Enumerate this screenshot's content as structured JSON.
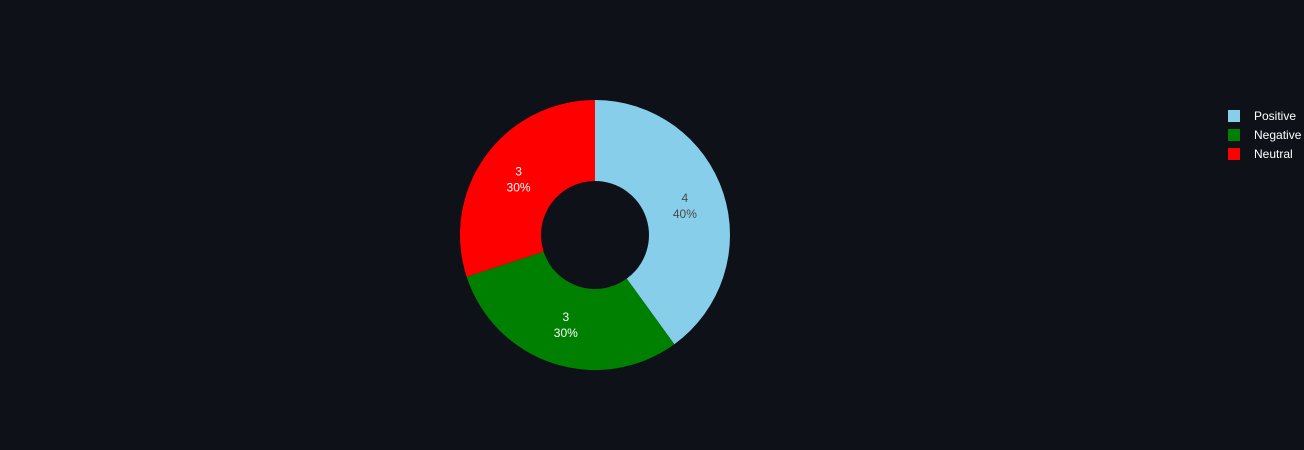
{
  "chart_data": {
    "type": "pie",
    "hole": true,
    "labels": [
      "Positive",
      "Negative",
      "Neutral"
    ],
    "values": [
      4,
      3,
      3
    ],
    "percent_labels": [
      "40%",
      "30%",
      "30%"
    ],
    "value_labels": [
      "4",
      "3",
      "3"
    ],
    "colors": [
      "#87ceeb",
      "#008000",
      "#ff0000"
    ],
    "label_colors": [
      "#4a4a4a",
      "#ffffff",
      "#ffffff"
    ],
    "legend_position": "top-right",
    "title": ""
  },
  "colors": {
    "background": "#0e1118",
    "legend_text": "#ffffff"
  }
}
